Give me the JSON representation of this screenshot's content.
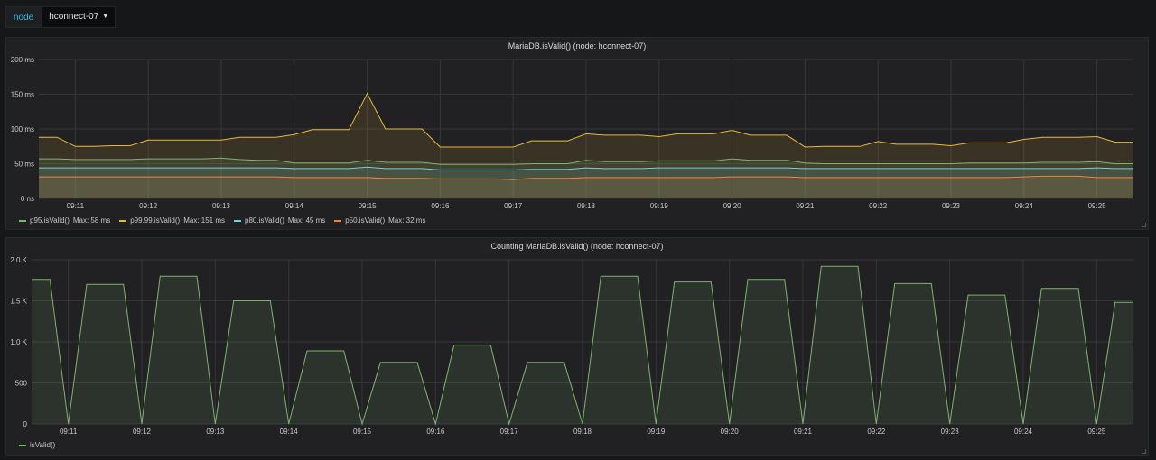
{
  "topbar": {
    "variable_label": "node",
    "variable_value": "hconnect-07"
  },
  "chart_data": [
    {
      "type": "line",
      "title": "MariaDB.isValid() (node: hconnect-07)",
      "ylim": [
        0,
        200
      ],
      "yticks": [
        {
          "value": 0,
          "label": "0 ns"
        },
        {
          "value": 50,
          "label": "50 ms"
        },
        {
          "value": 100,
          "label": "100 ms"
        },
        {
          "value": 150,
          "label": "150 ms"
        },
        {
          "value": 200,
          "label": "200 ms"
        }
      ],
      "xlim": [
        10.5,
        25.5
      ],
      "xticks": [
        {
          "value": 11,
          "label": "09:11"
        },
        {
          "value": 12,
          "label": "09:12"
        },
        {
          "value": 13,
          "label": "09:13"
        },
        {
          "value": 14,
          "label": "09:14"
        },
        {
          "value": 15,
          "label": "09:15"
        },
        {
          "value": 16,
          "label": "09:16"
        },
        {
          "value": 17,
          "label": "09:17"
        },
        {
          "value": 18,
          "label": "09:18"
        },
        {
          "value": 19,
          "label": "09:19"
        },
        {
          "value": 20,
          "label": "09:20"
        },
        {
          "value": 21,
          "label": "09:21"
        },
        {
          "value": 22,
          "label": "09:22"
        },
        {
          "value": 23,
          "label": "09:23"
        },
        {
          "value": 24,
          "label": "09:24"
        },
        {
          "value": 25,
          "label": "09:25"
        }
      ],
      "x": [
        10.5,
        10.75,
        11.0,
        11.25,
        11.5,
        11.75,
        12.0,
        12.25,
        12.5,
        12.75,
        13.0,
        13.25,
        13.5,
        13.75,
        14.0,
        14.25,
        14.5,
        14.75,
        15.0,
        15.25,
        15.5,
        15.75,
        16.0,
        16.25,
        16.5,
        16.75,
        17.0,
        17.25,
        17.5,
        17.75,
        18.0,
        18.25,
        18.5,
        18.75,
        19.0,
        19.25,
        19.5,
        19.75,
        20.0,
        20.25,
        20.5,
        20.75,
        21.0,
        21.25,
        21.5,
        21.75,
        22.0,
        22.25,
        22.5,
        22.75,
        23.0,
        23.25,
        23.5,
        23.75,
        24.0,
        24.25,
        24.5,
        24.75,
        25.0,
        25.25,
        25.5
      ],
      "series": [
        {
          "name": "p99.99.isValid()",
          "color": "#eab839",
          "legend": "Max: 151 ms",
          "values": [
            88,
            88,
            75,
            75,
            76,
            76,
            84,
            84,
            84,
            84,
            84,
            88,
            88,
            88,
            92,
            99,
            99,
            99,
            151,
            100,
            100,
            100,
            74,
            74,
            74,
            74,
            74,
            83,
            83,
            83,
            93,
            91,
            91,
            91,
            89,
            93,
            93,
            93,
            98,
            91,
            91,
            91,
            74,
            75,
            75,
            75,
            82,
            78,
            78,
            78,
            76,
            80,
            80,
            80,
            85,
            88,
            88,
            88,
            89,
            81,
            81
          ]
        },
        {
          "name": "p95.isValid()",
          "color": "#7eb26d",
          "legend": "Max: 58 ms",
          "values": [
            57,
            57,
            56,
            56,
            56,
            56,
            57,
            57,
            57,
            57,
            58,
            56,
            55,
            55,
            51,
            51,
            51,
            51,
            55,
            52,
            52,
            52,
            49,
            49,
            49,
            49,
            49,
            50,
            50,
            50,
            55,
            53,
            53,
            53,
            54,
            54,
            54,
            54,
            57,
            55,
            55,
            55,
            51,
            50,
            50,
            50,
            50,
            50,
            50,
            50,
            50,
            51,
            51,
            51,
            51,
            52,
            52,
            52,
            53,
            50,
            50
          ]
        },
        {
          "name": "p80.isValid()",
          "color": "#6ed0e0",
          "legend": "Max: 45 ms",
          "values": [
            44,
            44,
            44,
            44,
            44,
            44,
            44,
            44,
            44,
            44,
            44,
            44,
            44,
            44,
            43,
            43,
            43,
            43,
            45,
            43,
            43,
            43,
            41,
            41,
            41,
            41,
            41,
            42,
            42,
            42,
            44,
            43,
            43,
            43,
            44,
            44,
            44,
            44,
            44,
            44,
            44,
            44,
            43,
            43,
            43,
            43,
            43,
            43,
            43,
            43,
            43,
            43,
            43,
            43,
            43,
            43,
            43,
            43,
            44,
            43,
            43
          ]
        },
        {
          "name": "p50.isValid()",
          "color": "#ef843c",
          "legend": "Max: 32 ms",
          "values": [
            31,
            31,
            31,
            31,
            31,
            31,
            31,
            31,
            31,
            31,
            31,
            31,
            31,
            31,
            30,
            30,
            30,
            30,
            30,
            29,
            29,
            29,
            28,
            28,
            28,
            28,
            27,
            29,
            29,
            29,
            30,
            30,
            30,
            30,
            30,
            30,
            30,
            30,
            31,
            31,
            31,
            31,
            30,
            30,
            30,
            30,
            30,
            30,
            30,
            30,
            30,
            30,
            30,
            30,
            31,
            32,
            32,
            32,
            30,
            30,
            30
          ]
        }
      ],
      "legend_items": [
        {
          "label": "p95.isValid()",
          "max": "Max: 58 ms",
          "color": "#7eb26d"
        },
        {
          "label": "p99.99.isValid()",
          "max": "Max: 151 ms",
          "color": "#eab839"
        },
        {
          "label": "p80.isValid()",
          "max": "Max: 45 ms",
          "color": "#6ed0e0"
        },
        {
          "label": "p50.isValid()",
          "max": "Max: 32 ms",
          "color": "#ef843c"
        }
      ]
    },
    {
      "type": "area",
      "title": "Counting MariaDB.isValid() (node: hconnect-07)",
      "ylim": [
        0,
        2000
      ],
      "yticks": [
        {
          "value": 0,
          "label": "0"
        },
        {
          "value": 500,
          "label": "500"
        },
        {
          "value": 1000,
          "label": "1.0 K"
        },
        {
          "value": 1500,
          "label": "1.5 K"
        },
        {
          "value": 2000,
          "label": "2.0 K"
        }
      ],
      "xlim": [
        10.5,
        25.5
      ],
      "xticks": [
        {
          "value": 11,
          "label": "09:11"
        },
        {
          "value": 12,
          "label": "09:12"
        },
        {
          "value": 13,
          "label": "09:13"
        },
        {
          "value": 14,
          "label": "09:14"
        },
        {
          "value": 15,
          "label": "09:15"
        },
        {
          "value": 16,
          "label": "09:16"
        },
        {
          "value": 17,
          "label": "09:17"
        },
        {
          "value": 18,
          "label": "09:18"
        },
        {
          "value": 19,
          "label": "09:19"
        },
        {
          "value": 20,
          "label": "09:20"
        },
        {
          "value": 21,
          "label": "09:21"
        },
        {
          "value": 22,
          "label": "09:22"
        },
        {
          "value": 23,
          "label": "09:23"
        },
        {
          "value": 24,
          "label": "09:24"
        },
        {
          "value": 25,
          "label": "09:25"
        }
      ],
      "x": [
        10.5,
        10.75,
        11.0,
        11.25,
        11.75,
        12.0,
        12.25,
        12.75,
        13.0,
        13.25,
        13.75,
        14.0,
        14.25,
        14.75,
        15.0,
        15.25,
        15.75,
        16.0,
        16.25,
        16.75,
        17.0,
        17.25,
        17.75,
        18.0,
        18.25,
        18.75,
        19.0,
        19.25,
        19.75,
        20.0,
        20.25,
        20.75,
        21.0,
        21.25,
        21.75,
        22.0,
        22.25,
        22.75,
        23.0,
        23.25,
        23.75,
        24.0,
        24.25,
        24.75,
        25.0,
        25.25,
        25.5
      ],
      "series": [
        {
          "name": "isValid()",
          "color": "#7eb26d",
          "values": [
            1760,
            1760,
            0,
            1700,
            1700,
            0,
            1800,
            1800,
            0,
            1500,
            1500,
            0,
            890,
            890,
            0,
            750,
            750,
            0,
            960,
            960,
            0,
            750,
            750,
            0,
            1800,
            1800,
            0,
            1730,
            1730,
            0,
            1760,
            1760,
            0,
            1920,
            1920,
            0,
            1710,
            1710,
            0,
            1570,
            1570,
            0,
            1650,
            1650,
            0,
            1480,
            1480
          ]
        }
      ],
      "legend_items": [
        {
          "label": "isValid()",
          "color": "#7eb26d"
        }
      ]
    }
  ]
}
